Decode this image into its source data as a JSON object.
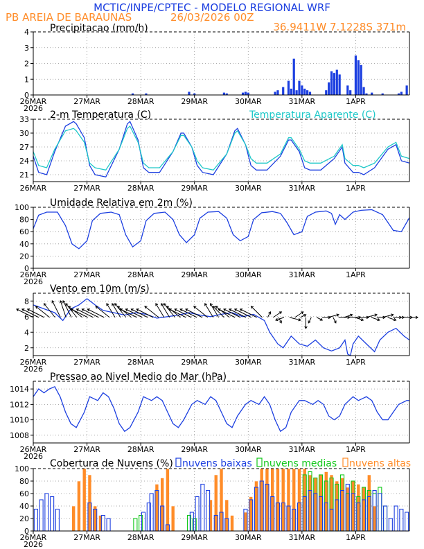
{
  "header": {
    "title": "MCTIC/INPE/CPTEC - MODELO REGIONAL WRF",
    "location": "PB AREIA DE BARAUNAS",
    "run": "26/03/2026 00Z",
    "coords": "36.9411W 7.1228S 371m"
  },
  "colors": {
    "blue": "#1c3fe0",
    "orange": "#ff8c28",
    "cyan": "#1ec8c8",
    "green": "#10c818",
    "black": "#000000",
    "grid": "#909090"
  },
  "x_axis": {
    "labels": [
      "26MAR",
      "27MAR",
      "28MAR",
      "29MAR",
      "30MAR",
      "31MAR",
      "1APR"
    ],
    "first_year": "2026",
    "days_span": 7
  },
  "chart_data": [
    {
      "type": "bar",
      "title": "Precipitacao (mm/h)",
      "ylim": [
        0,
        4
      ],
      "yticks": [
        0,
        1,
        2,
        3,
        4
      ],
      "unit": "mm/h",
      "x": [
        1.85,
        2.1,
        2.9,
        3.0,
        3.55,
        3.6,
        3.9,
        3.95,
        4.0,
        4.5,
        4.55,
        4.65,
        4.75,
        4.8,
        4.85,
        4.9,
        4.95,
        5.0,
        5.05,
        5.1,
        5.15,
        5.45,
        5.5,
        5.55,
        5.6,
        5.65,
        5.7,
        5.85,
        5.9,
        6.0,
        6.05,
        6.1,
        6.15,
        6.2,
        6.3,
        6.5,
        6.8,
        6.85,
        6.95
      ],
      "values": [
        0.1,
        0.1,
        0.2,
        0.1,
        0.15,
        0.1,
        0.15,
        0.2,
        0.15,
        0.2,
        0.3,
        0.5,
        0.9,
        0.4,
        2.3,
        0.3,
        0.9,
        0.6,
        0.4,
        0.3,
        0.2,
        0.3,
        0.8,
        1.5,
        1.4,
        1.6,
        1.3,
        0.6,
        0.3,
        2.5,
        2.2,
        1.9,
        0.5,
        0.1,
        0.15,
        0.1,
        0.1,
        0.2,
        0.6
      ]
    },
    {
      "type": "line",
      "title": "2-m Temperatura (C)",
      "ylim": [
        19.5,
        33
      ],
      "yticks": [
        21,
        24,
        27,
        30,
        33
      ],
      "series": [
        {
          "name": "2-m Temperatura (C)",
          "color": "blue",
          "x": [
            0,
            0.1,
            0.25,
            0.4,
            0.6,
            0.75,
            0.8,
            0.95,
            1.05,
            1.15,
            1.35,
            1.6,
            1.75,
            1.8,
            1.95,
            2.05,
            2.15,
            2.35,
            2.6,
            2.75,
            2.8,
            2.95,
            3.05,
            3.15,
            3.35,
            3.6,
            3.75,
            3.8,
            3.95,
            4.05,
            4.15,
            4.35,
            4.6,
            4.75,
            4.8,
            4.95,
            5.05,
            5.15,
            5.35,
            5.6,
            5.75,
            5.8,
            5.95,
            6.05,
            6.15,
            6.35,
            6.6,
            6.75,
            6.85,
            7.0
          ],
          "values": [
            25,
            21.5,
            21,
            26,
            31.5,
            32.5,
            32,
            29,
            23,
            21,
            20.5,
            26.5,
            32,
            32.5,
            28.5,
            22.5,
            21.5,
            21.5,
            26,
            30,
            30,
            27,
            23,
            21.5,
            21,
            25.5,
            30.5,
            31,
            27.5,
            23,
            22,
            22,
            25,
            28.5,
            28.5,
            26,
            22.5,
            22,
            22,
            24.5,
            27,
            23.5,
            21.5,
            21.5,
            21,
            22.5,
            26.5,
            27.5,
            24,
            23.5
          ]
        },
        {
          "name": "Temperatura Aparente (C)",
          "color": "cyan",
          "x": [
            0,
            0.1,
            0.25,
            0.4,
            0.6,
            0.75,
            0.8,
            0.95,
            1.05,
            1.15,
            1.35,
            1.6,
            1.75,
            1.8,
            1.95,
            2.05,
            2.15,
            2.35,
            2.6,
            2.75,
            2.8,
            2.95,
            3.05,
            3.15,
            3.35,
            3.6,
            3.75,
            3.8,
            3.95,
            4.05,
            4.15,
            4.35,
            4.6,
            4.75,
            4.8,
            4.95,
            5.05,
            5.15,
            5.35,
            5.6,
            5.75,
            5.8,
            5.95,
            6.05,
            6.15,
            6.35,
            6.6,
            6.75,
            6.85,
            7.0
          ],
          "values": [
            26,
            23,
            22.5,
            26.5,
            30.5,
            31,
            30.5,
            28,
            23.5,
            22.5,
            22,
            26.5,
            31,
            31.5,
            28,
            23.5,
            22.5,
            22.5,
            26,
            29.5,
            29.5,
            27,
            24,
            22.5,
            22,
            25.5,
            30,
            30.5,
            27.5,
            24.5,
            23.5,
            23.5,
            25.5,
            29,
            29,
            26.5,
            24,
            23.5,
            23.5,
            25,
            27.5,
            24.5,
            23,
            23,
            22.5,
            23.5,
            27,
            28,
            25,
            24.5
          ]
        }
      ]
    },
    {
      "type": "line",
      "title": "Umidade Relativa em 2m (%)",
      "ylim": [
        0,
        100
      ],
      "yticks": [
        0,
        20,
        40,
        60,
        80,
        100
      ],
      "series": [
        {
          "name": "Umidade Relativa em 2m (%)",
          "color": "blue",
          "x": [
            0,
            0.1,
            0.25,
            0.45,
            0.6,
            0.72,
            0.85,
            1.0,
            1.1,
            1.25,
            1.45,
            1.6,
            1.72,
            1.85,
            2.0,
            2.1,
            2.25,
            2.45,
            2.6,
            2.72,
            2.85,
            3.0,
            3.1,
            3.25,
            3.45,
            3.6,
            3.72,
            3.85,
            4.0,
            4.1,
            4.25,
            4.45,
            4.6,
            4.72,
            4.85,
            5.0,
            5.1,
            5.25,
            5.45,
            5.55,
            5.62,
            5.7,
            5.8,
            5.95,
            6.1,
            6.3,
            6.5,
            6.7,
            6.85,
            7.0
          ],
          "values": [
            65,
            87,
            92,
            92,
            70,
            40,
            32,
            45,
            78,
            90,
            92,
            88,
            55,
            35,
            45,
            78,
            90,
            92,
            80,
            55,
            42,
            55,
            82,
            92,
            93,
            82,
            55,
            45,
            52,
            80,
            91,
            93,
            90,
            75,
            55,
            60,
            85,
            92,
            94,
            90,
            72,
            88,
            80,
            92,
            95,
            96,
            88,
            62,
            60,
            83
          ]
        }
      ]
    },
    {
      "type": "line",
      "title": "Vento em 10m (m/s)",
      "ylim": [
        1,
        9
      ],
      "yticks": [
        2,
        4,
        6,
        8
      ],
      "series": [
        {
          "name": "Vento em 10m (m/s)",
          "color": "blue",
          "x": [
            0,
            0.2,
            0.4,
            0.55,
            0.7,
            0.85,
            1.0,
            1.15,
            1.3,
            1.5,
            1.7,
            1.9,
            2.1,
            2.3,
            2.5,
            2.7,
            2.9,
            3.1,
            3.3,
            3.5,
            3.7,
            3.9,
            4.1,
            4.3,
            4.4,
            4.55,
            4.65,
            4.8,
            4.95,
            5.1,
            5.25,
            5.4,
            5.55,
            5.7,
            5.8,
            5.85,
            5.9,
            5.95,
            6.05,
            6.2,
            6.35,
            6.45,
            6.6,
            6.75,
            6.9,
            7.0
          ],
          "values": [
            7.5,
            7.0,
            6.5,
            5.5,
            7.0,
            7.5,
            8.3,
            7.5,
            6.8,
            6.5,
            6.2,
            6.5,
            6.3,
            5.8,
            6.0,
            6.2,
            6.5,
            6.2,
            6.0,
            6.3,
            6.5,
            6.0,
            6.3,
            5.5,
            4.0,
            2.5,
            2.0,
            3.5,
            2.5,
            2.2,
            3.0,
            2.0,
            1.6,
            2.0,
            3.0,
            1.2,
            1.0,
            2.5,
            3.5,
            2.5,
            1.5,
            3.0,
            4.0,
            4.5,
            3.5,
            3.0
          ]
        }
      ]
    },
    {
      "type": "line",
      "title": "Pressao ao Nivel Medio do Mar (hPa)",
      "ylim": [
        1007,
        1015
      ],
      "yticks": [
        1008,
        1010,
        1012,
        1014
      ],
      "series": [
        {
          "name": "Pressao ao Nivel Medio do Mar (hPa)",
          "color": "blue",
          "x": [
            0,
            0.1,
            0.2,
            0.3,
            0.4,
            0.5,
            0.6,
            0.7,
            0.8,
            0.95,
            1.05,
            1.2,
            1.3,
            1.4,
            1.5,
            1.6,
            1.7,
            1.8,
            1.95,
            2.05,
            2.2,
            2.3,
            2.4,
            2.5,
            2.6,
            2.7,
            2.8,
            2.95,
            3.05,
            3.2,
            3.3,
            3.4,
            3.5,
            3.6,
            3.7,
            3.8,
            3.95,
            4.05,
            4.2,
            4.3,
            4.4,
            4.5,
            4.6,
            4.7,
            4.8,
            4.95,
            5.05,
            5.2,
            5.3,
            5.4,
            5.5,
            5.6,
            5.7,
            5.8,
            5.95,
            6.05,
            6.2,
            6.3,
            6.4,
            6.5,
            6.6,
            6.7,
            6.8,
            6.95,
            7.0
          ],
          "values": [
            1013,
            1014,
            1013.5,
            1014,
            1014.3,
            1013,
            1011,
            1009.5,
            1009,
            1011,
            1013,
            1012.5,
            1013.5,
            1013,
            1011.5,
            1009.5,
            1008.5,
            1009,
            1011,
            1013,
            1012.5,
            1013,
            1012.5,
            1011,
            1009.5,
            1009,
            1010,
            1012,
            1012.5,
            1012,
            1013,
            1012.5,
            1011,
            1009.5,
            1009,
            1010.5,
            1012,
            1012.5,
            1012,
            1013,
            1012,
            1010,
            1008.5,
            1009,
            1011,
            1012.5,
            1012.5,
            1012,
            1012.5,
            1012,
            1010.5,
            1010,
            1010.5,
            1012,
            1013,
            1012.5,
            1013,
            1012.5,
            1011,
            1010,
            1010,
            1011,
            1012,
            1012.5,
            1012.5
          ]
        }
      ]
    },
    {
      "type": "bar",
      "title": "Cobertura de Nuvens (%)",
      "ylim": [
        0,
        100
      ],
      "yticks": [
        0,
        20,
        40,
        60,
        80,
        100
      ],
      "series": [
        {
          "name": "nuvens baixas",
          "color": "blue",
          "x": [
            0.05,
            0.15,
            0.25,
            0.35,
            0.45,
            1.05,
            1.15,
            1.3,
            1.4,
            2.05,
            2.15,
            2.2,
            2.3,
            2.4,
            2.5,
            2.95,
            3.05,
            3.15,
            3.25,
            3.4,
            3.5,
            3.6,
            3.95,
            4.05,
            4.15,
            4.25,
            4.35,
            4.45,
            4.55,
            4.65,
            4.75,
            4.85,
            4.95,
            5.05,
            5.15,
            5.25,
            5.35,
            5.45,
            5.55,
            5.65,
            5.75,
            5.85,
            5.95,
            6.05,
            6.15,
            6.25,
            6.35,
            6.45,
            6.55,
            6.65,
            6.75,
            6.85,
            6.95
          ],
          "values": [
            35,
            50,
            60,
            55,
            35,
            45,
            35,
            25,
            20,
            30,
            45,
            60,
            65,
            40,
            10,
            30,
            55,
            75,
            65,
            25,
            30,
            20,
            35,
            50,
            70,
            80,
            75,
            55,
            45,
            45,
            40,
            35,
            45,
            55,
            65,
            60,
            55,
            45,
            35,
            50,
            65,
            75,
            60,
            45,
            50,
            55,
            65,
            60,
            40,
            20,
            40,
            35,
            30
          ]
        },
        {
          "name": "nuvens medias",
          "color": "green",
          "x": [
            1.9,
            2.0,
            2.9,
            3.0,
            5.05,
            5.15,
            5.25,
            5.35,
            5.45,
            5.55,
            5.65,
            5.75,
            5.85,
            5.95,
            6.05,
            6.15,
            6.25,
            6.35,
            6.45,
            6.55
          ],
          "values": [
            20,
            25,
            25,
            20,
            90,
            95,
            85,
            90,
            80,
            85,
            75,
            90,
            60,
            80,
            55,
            70,
            65,
            60,
            70,
            40
          ]
        },
        {
          "name": "nuvens altas",
          "color": "orange",
          "x": [
            0.75,
            0.85,
            0.95,
            1.05,
            1.15,
            1.25,
            2.3,
            2.4,
            2.5,
            2.6,
            3.3,
            3.4,
            3.5,
            3.6,
            3.7,
            3.95,
            4.05,
            4.15,
            4.25,
            4.35,
            4.45,
            4.55,
            4.65,
            4.75,
            4.85,
            4.95,
            5.05,
            5.15,
            5.25,
            5.35,
            5.45,
            5.55,
            5.65,
            5.75,
            5.85,
            5.95,
            6.05,
            6.15,
            6.25,
            6.35
          ],
          "values": [
            40,
            80,
            100,
            90,
            40,
            25,
            75,
            85,
            100,
            40,
            50,
            90,
            100,
            50,
            25,
            30,
            55,
            80,
            100,
            100,
            100,
            100,
            100,
            100,
            100,
            100,
            100,
            90,
            85,
            90,
            95,
            90,
            80,
            85,
            70,
            80,
            75,
            70,
            90,
            40
          ]
        }
      ]
    }
  ],
  "wind_arrows": {
    "baseline": 5.9,
    "dx": [
      -6,
      -6,
      -6,
      -5,
      -4,
      -3,
      -2,
      -3,
      -4,
      -5,
      -6,
      -6,
      -6,
      -6,
      -5,
      -3,
      -3,
      -4,
      -5,
      -6,
      -6,
      -6,
      -6,
      -5,
      -3,
      -3,
      -4,
      -5,
      -6,
      -6,
      -6,
      -6,
      -5,
      -3,
      -3,
      -4,
      -5,
      -6,
      -6,
      -6,
      -6,
      -6,
      -4,
      1,
      3,
      1,
      -3,
      4,
      3,
      2,
      0,
      -1,
      2,
      3,
      4,
      1,
      4,
      3,
      4,
      3,
      3,
      4,
      3,
      3,
      4,
      3,
      3,
      2,
      3,
      3
    ],
    "dy": [
      -3,
      -3,
      -3,
      -4,
      -5,
      -6,
      -6,
      -6,
      -5,
      -4,
      -3,
      -3,
      -3,
      -3,
      -4,
      -5,
      -5,
      -5,
      -4,
      -3,
      -3,
      -3,
      -3,
      -4,
      -5,
      -5,
      -5,
      -4,
      -3,
      -3,
      -3,
      -3,
      -4,
      -5,
      -5,
      -4,
      -4,
      -3,
      -3,
      -3,
      -3,
      -3,
      -4,
      -2,
      -2,
      2,
      1,
      1,
      -2,
      -1,
      4,
      2,
      1,
      0,
      -1,
      2,
      0,
      -1,
      0,
      1,
      0,
      -1,
      1,
      0,
      -1,
      1,
      0,
      0,
      0,
      0
    ]
  }
}
